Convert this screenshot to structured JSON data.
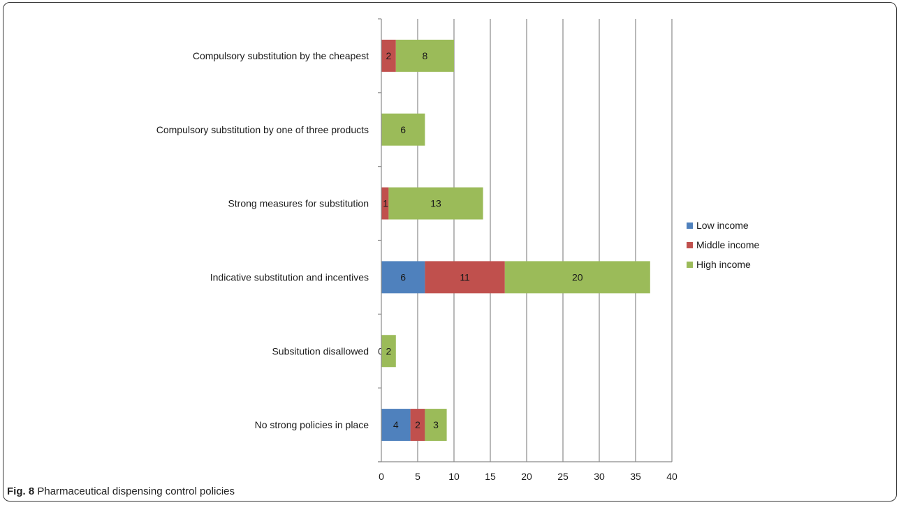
{
  "caption": {
    "label": "Fig. 8",
    "text": "Pharmaceutical dispensing control policies"
  },
  "colors": {
    "low": "#4f81bd",
    "middle": "#c0504d",
    "high": "#9bbb59",
    "grid": "#8a8a8a",
    "axis": "#8a8a8a",
    "text": "#1a1a1a"
  },
  "chart_data": {
    "type": "bar",
    "orientation": "horizontal",
    "stacked": true,
    "categories": [
      "Compulsory substitution by the cheapest",
      "Compulsory substitution by one of three products",
      "Strong measures for substitution",
      "Indicative substitution and incentives",
      "Subsitution disallowed",
      "No strong policies  in place"
    ],
    "series": [
      {
        "name": "Low income",
        "values": [
          null,
          null,
          null,
          6,
          null,
          4
        ],
        "labels": [
          "",
          "",
          "",
          "6",
          "",
          "4"
        ]
      },
      {
        "name": "Middle income",
        "values": [
          2,
          null,
          1,
          11,
          0,
          2
        ],
        "labels": [
          "2",
          "",
          "1",
          "11",
          "0",
          "2"
        ]
      },
      {
        "name": "High income",
        "values": [
          8,
          6,
          13,
          20,
          2,
          3
        ],
        "labels": [
          "8",
          "6",
          "13",
          "20",
          "2",
          "3"
        ]
      }
    ],
    "xlim": [
      0,
      40
    ],
    "xticks": [
      "0",
      "5",
      "10",
      "15",
      "20",
      "25",
      "30",
      "35",
      "40"
    ],
    "grid": true,
    "legend": "right",
    "title": "",
    "xlabel": "",
    "ylabel": ""
  }
}
